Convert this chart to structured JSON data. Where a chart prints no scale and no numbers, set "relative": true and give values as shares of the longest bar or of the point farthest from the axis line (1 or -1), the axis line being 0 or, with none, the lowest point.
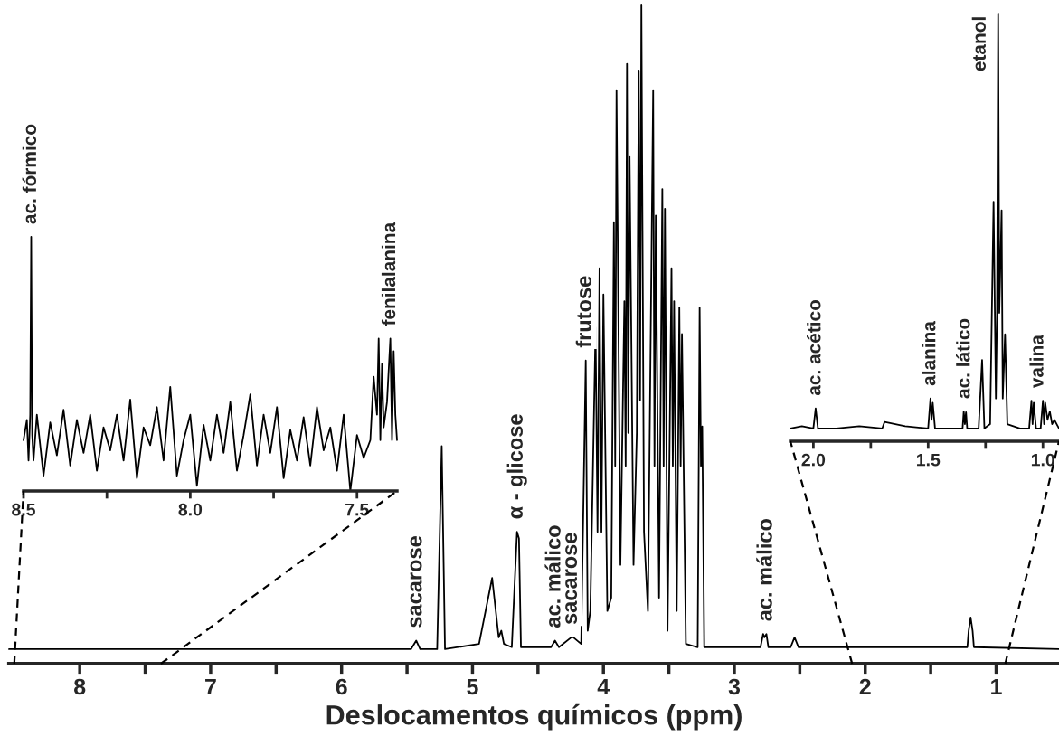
{
  "chart_data": [
    {
      "type": "line",
      "relative": true,
      "xlabel": "Deslocamentos químicos (ppm)",
      "xlim": [
        8.54,
        0.52
      ],
      "xticks": [
        8,
        {
          "value": 7.5,
          "label": null
        },
        7,
        {
          "value": 6.5,
          "label": null
        },
        6,
        {
          "value": 5.5,
          "label": null
        },
        5,
        {
          "value": 4.5,
          "label": null
        },
        4,
        {
          "value": 3.5,
          "label": null
        },
        3,
        {
          "value": 2.5,
          "label": null
        },
        2,
        {
          "value": 1.5,
          "label": null
        },
        1
      ],
      "tick_labels": "x",
      "grid": false,
      "legend": false,
      "series": [
        {
          "color": "#000000",
          "x": [
            8.54,
            5.47,
            5.43,
            5.4,
            5.27,
            5.235,
            5.21,
            4.95,
            4.85,
            4.8,
            4.78,
            4.76,
            4.7,
            4.66,
            4.645,
            4.63,
            4.4,
            4.37,
            4.34,
            4.245,
            4.23,
            4.17,
            4.135,
            4.12,
            4.1,
            4.06,
            4.045,
            4.03,
            4.015,
            4.0,
            3.97,
            3.94,
            3.92,
            3.91,
            3.9,
            3.87,
            3.84,
            3.83,
            3.82,
            3.81,
            3.8,
            3.77,
            3.745,
            3.73,
            3.72,
            3.71,
            3.69,
            3.66,
            3.62,
            3.61,
            3.6,
            3.575,
            3.55,
            3.54,
            3.53,
            3.51,
            3.48,
            3.47,
            3.46,
            3.44,
            3.42,
            3.41,
            3.4,
            3.37,
            3.28,
            3.265,
            3.255,
            3.245,
            3.23,
            2.8,
            2.78,
            2.77,
            2.755,
            2.74,
            2.57,
            2.54,
            2.51,
            1.22,
            1.21,
            1.195,
            1.18,
            1.17,
            0.52
          ],
          "values": [
            0.022,
            0.022,
            0.035,
            0.022,
            0.022,
            0.33,
            0.022,
            0.03,
            0.13,
            0.04,
            0.05,
            0.03,
            0.025,
            0.2,
            0.19,
            0.025,
            0.025,
            0.035,
            0.025,
            0.04,
            0.04,
            0.03,
            0.46,
            0.05,
            0.08,
            0.51,
            0.2,
            0.6,
            0.2,
            0.56,
            0.08,
            0.1,
            0.67,
            0.3,
            0.87,
            0.15,
            0.55,
            0.3,
            0.91,
            0.35,
            0.77,
            0.15,
            0.35,
            0.9,
            0.4,
            1.0,
            0.2,
            0.08,
            0.87,
            0.3,
            0.68,
            0.1,
            0.72,
            0.3,
            0.69,
            0.05,
            0.6,
            0.3,
            0.55,
            0.08,
            0.54,
            0.3,
            0.5,
            0.03,
            0.025,
            0.54,
            0.3,
            0.36,
            0.025,
            0.025,
            0.045,
            0.04,
            0.045,
            0.025,
            0.025,
            0.04,
            0.025,
            0.025,
            0.05,
            0.07,
            0.05,
            0.025,
            0.022
          ]
        }
      ],
      "annotations": [
        {
          "text": "sacarose",
          "x": 5.43,
          "y": 0.035
        },
        {
          "text": "α - glicose",
          "x": 4.66,
          "y": 0.2
        },
        {
          "text": "ac. málico",
          "x": 4.37,
          "y": 0.035
        },
        {
          "text": "sacarose",
          "x": 4.245,
          "y": 0.04
        },
        {
          "text": "frutose",
          "x": 4.135,
          "y": 0.46
        },
        {
          "text": "ac. málico",
          "x": 2.755,
          "y": 0.045
        }
      ]
    },
    {
      "type": "line",
      "relative": true,
      "xlim": [
        8.5,
        7.38
      ],
      "xticks": [
        {
          "value": 8.5,
          "label": "8.5"
        },
        {
          "value": 8.25,
          "label": null
        },
        {
          "value": 8,
          "label": "8.0"
        },
        {
          "value": 7.75,
          "label": null
        },
        {
          "value": 7.5,
          "label": "7.5"
        }
      ],
      "tick_labels": "x",
      "grid": false,
      "legend": false,
      "series": [
        {
          "color": "#000000",
          "x": [
            8.5,
            8.49,
            8.485,
            8.48,
            8.477,
            8.474,
            8.47,
            8.46,
            8.44,
            8.42,
            8.4,
            8.38,
            8.36,
            8.34,
            8.32,
            8.3,
            8.28,
            8.26,
            8.24,
            8.22,
            8.2,
            8.18,
            8.16,
            8.14,
            8.12,
            8.1,
            8.08,
            8.06,
            8.04,
            8.02,
            8.0,
            7.98,
            7.96,
            7.94,
            7.92,
            7.9,
            7.88,
            7.86,
            7.84,
            7.82,
            7.8,
            7.78,
            7.76,
            7.74,
            7.72,
            7.7,
            7.68,
            7.66,
            7.64,
            7.62,
            7.6,
            7.58,
            7.56,
            7.54,
            7.52,
            7.5,
            7.48,
            7.46,
            7.45,
            7.44,
            7.435,
            7.43,
            7.425,
            7.42,
            7.41,
            7.4,
            7.395,
            7.39,
            7.385,
            7.38
          ],
          "values": [
            0.2,
            0.28,
            0.12,
            0.3,
            1.0,
            0.22,
            0.12,
            0.3,
            0.06,
            0.27,
            0.14,
            0.32,
            0.1,
            0.28,
            0.15,
            0.3,
            0.08,
            0.25,
            0.16,
            0.3,
            0.12,
            0.36,
            0.05,
            0.25,
            0.18,
            0.33,
            0.12,
            0.41,
            0.06,
            0.2,
            0.3,
            0.02,
            0.26,
            0.12,
            0.3,
            0.15,
            0.35,
            0.08,
            0.22,
            0.38,
            0.1,
            0.3,
            0.15,
            0.33,
            0.05,
            0.24,
            0.12,
            0.29,
            0.1,
            0.33,
            0.16,
            0.25,
            0.08,
            0.3,
            0.0,
            0.22,
            0.13,
            0.2,
            0.45,
            0.3,
            0.6,
            0.2,
            0.5,
            0.25,
            0.35,
            0.6,
            0.2,
            0.55,
            0.3,
            0.2
          ]
        }
      ],
      "annotations": [
        {
          "text": "ac. fórmico",
          "x": 8.477,
          "y": 1.0
        },
        {
          "text": "fenilalanina",
          "x": 7.4,
          "y": 0.6
        }
      ]
    },
    {
      "type": "line",
      "relative": true,
      "xlim": [
        2.1,
        0.93
      ],
      "xticks": [
        {
          "value": 2,
          "label": "2.0"
        },
        {
          "value": 1.75,
          "label": null
        },
        {
          "value": 1.5,
          "label": "1.5"
        },
        {
          "value": 1.25,
          "label": null
        },
        {
          "value": 1,
          "label": "1.0"
        }
      ],
      "tick_labels": "x",
      "grid": false,
      "legend": false,
      "series": [
        {
          "color": "#000000",
          "x": [
            2.1,
            2.05,
            2.0,
            1.99,
            1.98,
            1.9,
            1.8,
            1.7,
            1.69,
            1.6,
            1.5,
            1.49,
            1.485,
            1.48,
            1.47,
            1.4,
            1.35,
            1.345,
            1.34,
            1.335,
            1.33,
            1.28,
            1.265,
            1.255,
            1.23,
            1.215,
            1.205,
            1.2,
            1.195,
            1.19,
            1.18,
            1.175,
            1.165,
            1.155,
            1.1,
            1.06,
            1.05,
            1.045,
            1.04,
            1.03,
            1.01,
            1.0,
            0.995,
            0.99,
            0.98,
            0.97,
            0.96,
            0.95,
            0.93
          ],
          "values": [
            0.03,
            0.035,
            0.03,
            0.077,
            0.03,
            0.03,
            0.035,
            0.03,
            0.045,
            0.035,
            0.03,
            0.1,
            0.05,
            0.09,
            0.03,
            0.03,
            0.03,
            0.07,
            0.04,
            0.068,
            0.03,
            0.03,
            0.19,
            0.03,
            0.04,
            0.56,
            0.1,
            0.3,
            1.0,
            0.3,
            0.54,
            0.1,
            0.25,
            0.04,
            0.03,
            0.03,
            0.095,
            0.04,
            0.09,
            0.03,
            0.03,
            0.095,
            0.04,
            0.09,
            0.05,
            0.07,
            0.04,
            0.05,
            0.03
          ]
        }
      ],
      "annotations": [
        {
          "text": "ac. acético",
          "x": 1.99,
          "y": 0.077
        },
        {
          "text": "alanina",
          "x": 1.49,
          "y": 0.1
        },
        {
          "text": "ac. lático",
          "x": 1.34,
          "y": 0.07
        },
        {
          "text": "etanol",
          "x": 1.2,
          "y": 1.0
        },
        {
          "text": "valina",
          "x": 1.02,
          "y": 0.095
        }
      ]
    }
  ]
}
